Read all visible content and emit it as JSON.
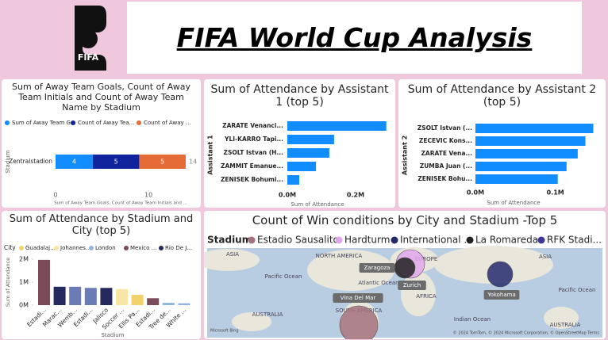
{
  "title": "FIFA World Cup Analysis",
  "logo_text": "FIFA",
  "chart_data": [
    {
      "type": "stacked_hbar",
      "title": "Sum of Away Team Goals, Count of Away Team Initials and Count of Away Team Name by Stadium",
      "categories": [
        "Zentralstadion"
      ],
      "series": [
        {
          "name": "Sum of Away Team G...",
          "color": "#118dff",
          "values": [
            4
          ]
        },
        {
          "name": "Count of Away Tea...",
          "color": "#12239e",
          "values": [
            5
          ]
        },
        {
          "name": "Count of Away ...",
          "color": "#e66c37",
          "values": [
            5
          ]
        }
      ],
      "totals": [
        14
      ],
      "xlim": [
        0,
        14
      ],
      "xticks": [
        0,
        10
      ],
      "xlabel": "Sum of Away Team Goals, Count of Away Team Initials and ...",
      "ylabel": "Stadium"
    },
    {
      "type": "hbar",
      "title": "Sum of Attendance by Assistant 1 (top 5)",
      "categories": [
        "ZARATE Venanci...",
        "YLI-KARRO Tapi...",
        "ZSOLT Istvan (H...",
        "ZAMMIT Emanue...",
        "ZENISEK Bohumi..."
      ],
      "values": [
        290000,
        137000,
        123000,
        84000,
        35000
      ],
      "color": "#118dff",
      "xlim": [
        0,
        300000
      ],
      "xticks": [
        {
          "value": 0,
          "label": "0.0M"
        },
        {
          "value": 200000,
          "label": "0.2M"
        }
      ],
      "xlabel": "Sum of Attendance",
      "ylabel": "Assistant 1"
    },
    {
      "type": "hbar",
      "title": "Sum of Attendance by Assistant 2 (top 5)",
      "categories": [
        "ZSOLT Istvan (...",
        "ZECEVIC Kons...",
        "ZARATE Vena...",
        "ZUMBA Juan (...",
        "ZENISEK Bohu..."
      ],
      "values": [
        147500,
        137600,
        128000,
        114000,
        103000
      ],
      "color": "#118dff",
      "xlim": [
        0,
        150000
      ],
      "xticks": [
        {
          "value": 0,
          "label": "0.0M"
        },
        {
          "value": 100000,
          "label": "0.1M"
        }
      ],
      "xlabel": "Sum of Attendance",
      "ylabel": "Assistant 2"
    },
    {
      "type": "column",
      "title": "Sum of Attendance by Stadium and City (top 5)",
      "legend_title": "City",
      "legend": [
        {
          "name": "Guadalaj...",
          "color": "#f2d36b"
        },
        {
          "name": "Johannes...",
          "color": "#f7e6a6"
        },
        {
          "name": "London",
          "color": "#8fb6e0"
        },
        {
          "name": "Mexico ...",
          "color": "#7b4b5a"
        },
        {
          "name": "Rio De J...",
          "color": "#252a5e"
        }
      ],
      "categories": [
        "Estadi...",
        "Marac...",
        "Wemb...",
        "Estadi...",
        "Jalisco",
        "Soccer ...",
        "Ellis Pa...",
        "Estadi...",
        "Tree de...",
        "White ..."
      ],
      "values": [
        1970000,
        800000,
        800000,
        750000,
        750000,
        700000,
        450000,
        300000,
        100000,
        80000
      ],
      "colors": [
        "#7b4b5a",
        "#252a5e",
        "#6b7bb5",
        "#6b7bb5",
        "#252a5e",
        "#f7e6a6",
        "#f2d36b",
        "#7b4b5a",
        "#8fb6e0",
        "#8fb6e0"
      ],
      "ylim": [
        0,
        2000000
      ],
      "yticks": [
        {
          "value": 0,
          "label": "0M"
        },
        {
          "value": 1000000,
          "label": "1M"
        },
        {
          "value": 2000000,
          "label": "2M"
        }
      ],
      "xlabel": "Stadium",
      "ylabel": "Sum of Attendance"
    },
    {
      "type": "map",
      "title": "Count of Win conditions by City and Stadium -Top 5",
      "legend_title": "Stadium",
      "series": [
        {
          "name": "Estadio Sausalito",
          "color": "#a4717e",
          "city": "Vina Del Mar"
        },
        {
          "name": "Hardturm",
          "color": "#e2a6ee",
          "city": "Zurich"
        },
        {
          "name": "International ...",
          "color": "#252a6e",
          "city": "Yokohama"
        },
        {
          "name": "La Romareda",
          "color": "#222222",
          "city": "Zaragoza"
        },
        {
          "name": "RFK Stadi...",
          "color": "#3f3796",
          "city": null
        }
      ],
      "regions": [
        "ASIA",
        "NORTH AMERICA",
        "EUROPE",
        "Pacific Ocean",
        "Atlantic Ocean",
        "AFRICA",
        "ASIA",
        "Pacific Ocean",
        "SOUTH AMERICA",
        "AUSTRALIA",
        "AUSTRALIA",
        "Indian Ocean"
      ],
      "provider": "Microsoft Bing",
      "attribution": "© 2024 TomTom, © 2024 Microsoft Corporation, © OpenStreetMap  Terms"
    }
  ]
}
